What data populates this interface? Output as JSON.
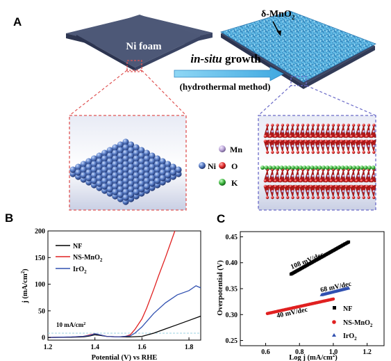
{
  "panel_a": {
    "letter": "A",
    "ni_foam_label": "Ni foam",
    "mno2_label": "δ-MnO",
    "mno2_sub": "2",
    "arrow_label_italic": "in-situ",
    "arrow_label_rest": " growth",
    "method_label": "(hydrothermal method)",
    "legend_ni": "Ni",
    "legend_mn": "Mn",
    "legend_o": "O",
    "legend_k": "K",
    "colors": {
      "ni": "#5b7fc7",
      "mn": "#b9a3d6",
      "o": "#e02a2a",
      "k": "#3bb33b",
      "foam": "#4d5877",
      "mno2": "#6ec7ee",
      "box_red": "#e05555",
      "box_blue": "#6a6ac8"
    }
  },
  "panel_b": {
    "letter": "B",
    "xlabel": "Potential (V) vs RHE",
    "ylabel_main": "j (mA/cm",
    "ylabel_sup": "2",
    "ylabel_close": ")",
    "annotation_main": "10 mA/cm",
    "annotation_sup": "2",
    "xticks": [
      "1.2",
      "1.4",
      "1.6",
      "1.8"
    ],
    "yticks": [
      "0",
      "50",
      "100",
      "150",
      "200"
    ],
    "legend": [
      {
        "name": "NF",
        "color": "#000000"
      },
      {
        "name": "NS-MnO",
        "sub": "2",
        "color": "#e02020"
      },
      {
        "name": "IrO",
        "sub": "2",
        "color": "#3050b0"
      }
    ]
  },
  "panel_c": {
    "letter": "C",
    "xlabel_main": "Log  j (mA/cm",
    "xlabel_sup": "2",
    "xlabel_close": ")",
    "ylabel": "Overpotential (V)",
    "xticks": [
      "0.6",
      "0.8",
      "1.0",
      "1.2"
    ],
    "yticks": [
      "0.25",
      "0.30",
      "0.35",
      "0.40",
      "0.45"
    ],
    "slope_nf": "108  mV/dec",
    "slope_iro2": "68  mV/dec",
    "slope_mno2": "40  mV/dec",
    "legend": [
      {
        "name": "NF",
        "color": "#000000",
        "marker": "square"
      },
      {
        "name": "NS-MnO",
        "sub": "2",
        "color": "#e02020",
        "marker": "circle"
      },
      {
        "name": "IrO",
        "sub": "2",
        "color": "#3050b0",
        "marker": "triangle"
      }
    ]
  },
  "chart_data": [
    {
      "type": "line",
      "title": "",
      "xlabel": "Potential (V) vs RHE",
      "ylabel": "j (mA/cm2)",
      "xlim": [
        1.2,
        1.85
      ],
      "ylim": [
        -5,
        200
      ],
      "reference_line": {
        "y": 10,
        "label": "10 mA/cm2"
      },
      "series": [
        {
          "name": "NF",
          "color": "#000000",
          "x": [
            1.2,
            1.3,
            1.35,
            1.38,
            1.4,
            1.42,
            1.45,
            1.5,
            1.55,
            1.6,
            1.65,
            1.7,
            1.75,
            1.8,
            1.85
          ],
          "y": [
            0,
            0.5,
            1,
            3,
            5,
            4,
            2,
            1,
            1,
            2,
            8,
            16,
            24,
            32,
            40
          ]
        },
        {
          "name": "NS-MnO2",
          "color": "#e02020",
          "x": [
            1.2,
            1.3,
            1.35,
            1.38,
            1.4,
            1.42,
            1.45,
            1.5,
            1.53,
            1.55,
            1.57,
            1.6,
            1.62,
            1.65,
            1.67,
            1.7,
            1.72,
            1.74
          ],
          "y": [
            0,
            1,
            2,
            5,
            7,
            5,
            2,
            1,
            2,
            5,
            15,
            35,
            55,
            90,
            115,
            150,
            175,
            200
          ]
        },
        {
          "name": "IrO2",
          "color": "#3050b0",
          "x": [
            1.2,
            1.3,
            1.35,
            1.38,
            1.4,
            1.42,
            1.45,
            1.5,
            1.55,
            1.57,
            1.6,
            1.65,
            1.7,
            1.75,
            1.8,
            1.83,
            1.85
          ],
          "y": [
            0,
            1,
            2,
            4,
            7,
            5,
            2,
            1,
            3,
            8,
            20,
            45,
            65,
            80,
            88,
            97,
            93
          ]
        }
      ]
    },
    {
      "type": "scatter",
      "title": "",
      "xlabel": "Log j (mA/cm2)",
      "ylabel": "Overpotential (V)",
      "xlim": [
        0.45,
        1.3
      ],
      "ylim": [
        0.24,
        0.46
      ],
      "series": [
        {
          "name": "NF",
          "color": "#000000",
          "marker": "square",
          "x_range": [
            0.75,
            1.09
          ],
          "y_range": [
            0.378,
            0.44
          ]
        },
        {
          "name": "NS-MnO2",
          "color": "#e02020",
          "marker": "circle",
          "x_range": [
            0.61,
            1.0
          ],
          "y_range": [
            0.302,
            0.33
          ]
        },
        {
          "name": "IrO2",
          "color": "#3050b0",
          "marker": "triangle",
          "x_range": [
            0.93,
            1.09
          ],
          "y_range": [
            0.338,
            0.351
          ]
        }
      ],
      "annotations": [
        "108  mV/dec",
        "68  mV/dec",
        "40  mV/dec"
      ]
    }
  ]
}
